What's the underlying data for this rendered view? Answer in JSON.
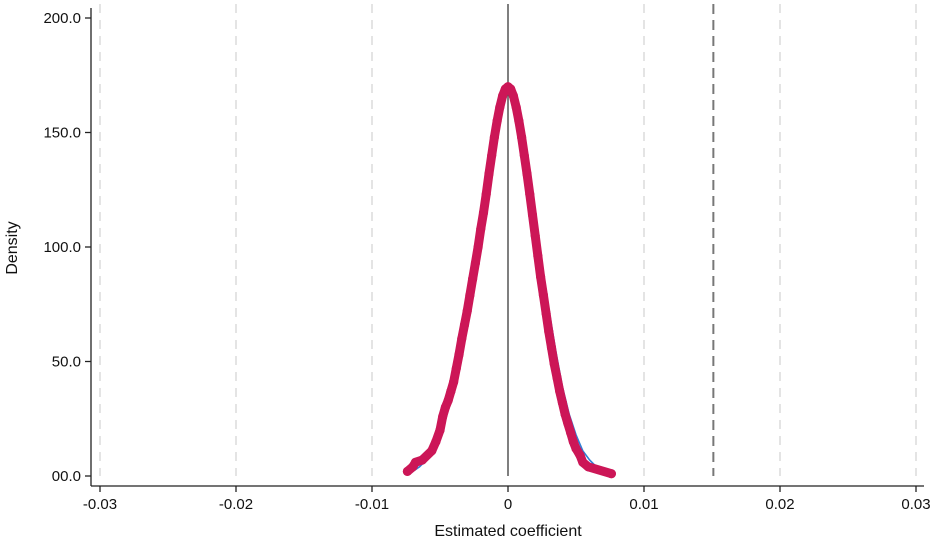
{
  "chart_data": {
    "type": "scatter",
    "title": "",
    "xlabel": "Estimated coefficient",
    "ylabel": "Density",
    "xlim": [
      -0.03,
      0.03
    ],
    "ylim": [
      0,
      200
    ],
    "xticks": [
      -0.03,
      -0.02,
      -0.01,
      0.0,
      0.01,
      0.02,
      0.03
    ],
    "xtick_labels": [
      "-0.03",
      "-0.02",
      "-0.01",
      "0",
      "0.01",
      "0.02",
      "0.03"
    ],
    "yticks": [
      0,
      50,
      100,
      150,
      200
    ],
    "ytick_labels": [
      "00.0",
      "50.0",
      "100.0",
      "150.0",
      "200.0"
    ],
    "grid": "vertical dashed light gray at x ticks",
    "legend": "none",
    "reference_lines": [
      {
        "name": "zero line",
        "x": 0.0,
        "style": "solid",
        "color": "#555555"
      },
      {
        "name": "actual estimate",
        "x": 0.0151,
        "style": "dashed",
        "color": "#777777"
      }
    ],
    "series": [
      {
        "type": "scatter",
        "color": "#cc1657",
        "points": [
          [
            -0.0074,
            2
          ],
          [
            -0.007,
            4
          ],
          [
            -0.0068,
            6
          ],
          [
            -0.0063,
            7
          ],
          [
            -0.0056,
            11
          ],
          [
            -0.0053,
            15
          ],
          [
            -0.005,
            20
          ],
          [
            -0.0048,
            26
          ],
          [
            -0.0046,
            30
          ],
          [
            -0.0044,
            33
          ],
          [
            -0.0042,
            37
          ],
          [
            -0.004,
            41
          ],
          [
            -0.0038,
            47
          ],
          [
            -0.0036,
            53
          ],
          [
            -0.0034,
            60
          ],
          [
            -0.0032,
            66
          ],
          [
            -0.003,
            72
          ],
          [
            -0.0028,
            79
          ],
          [
            -0.0026,
            86
          ],
          [
            -0.0024,
            93
          ],
          [
            -0.0022,
            100
          ],
          [
            -0.002,
            108
          ],
          [
            -0.0018,
            115
          ],
          [
            -0.0016,
            123
          ],
          [
            -0.0014,
            132
          ],
          [
            -0.0012,
            140
          ],
          [
            -0.001,
            148
          ],
          [
            -0.0008,
            155
          ],
          [
            -0.0006,
            161
          ],
          [
            -0.0004,
            166
          ],
          [
            -0.0002,
            169
          ],
          [
            0.0,
            170
          ],
          [
            0.0002,
            169
          ],
          [
            0.0004,
            166
          ],
          [
            0.0006,
            161
          ],
          [
            0.0008,
            155
          ],
          [
            0.001,
            148
          ],
          [
            0.0012,
            140
          ],
          [
            0.0014,
            132
          ],
          [
            0.0016,
            123
          ],
          [
            0.0018,
            114
          ],
          [
            0.002,
            105
          ],
          [
            0.0022,
            96
          ],
          [
            0.0024,
            87
          ],
          [
            0.0026,
            79
          ],
          [
            0.0028,
            71
          ],
          [
            0.003,
            63
          ],
          [
            0.0032,
            56
          ],
          [
            0.0034,
            49
          ],
          [
            0.0036,
            43
          ],
          [
            0.0038,
            37
          ],
          [
            0.004,
            32
          ],
          [
            0.0042,
            27
          ],
          [
            0.0044,
            23
          ],
          [
            0.0046,
            19
          ],
          [
            0.0048,
            15
          ],
          [
            0.005,
            12
          ],
          [
            0.0053,
            9
          ],
          [
            0.0055,
            6
          ],
          [
            0.0059,
            4
          ],
          [
            0.0076,
            1
          ]
        ]
      },
      {
        "type": "line",
        "color": "#2f7fd6",
        "points": [
          [
            -0.007,
            2
          ],
          [
            -0.0065,
            4
          ],
          [
            -0.006,
            7
          ],
          [
            -0.0055,
            11
          ],
          [
            -0.005,
            18
          ],
          [
            -0.0045,
            27
          ],
          [
            -0.004,
            39
          ],
          [
            -0.0035,
            55
          ],
          [
            -0.003,
            73
          ],
          [
            -0.0025,
            93
          ],
          [
            -0.002,
            113
          ],
          [
            -0.0015,
            133
          ],
          [
            -0.001,
            150
          ],
          [
            -0.0005,
            163
          ],
          [
            0.0,
            168
          ],
          [
            0.0005,
            163
          ],
          [
            0.001,
            150
          ],
          [
            0.0015,
            133
          ],
          [
            0.002,
            113
          ],
          [
            0.0025,
            93
          ],
          [
            0.003,
            73
          ],
          [
            0.0035,
            55
          ],
          [
            0.004,
            39
          ],
          [
            0.0045,
            27
          ],
          [
            0.005,
            18
          ],
          [
            0.0055,
            11
          ],
          [
            0.006,
            7
          ],
          [
            0.0065,
            4
          ],
          [
            0.007,
            2
          ]
        ]
      }
    ]
  }
}
